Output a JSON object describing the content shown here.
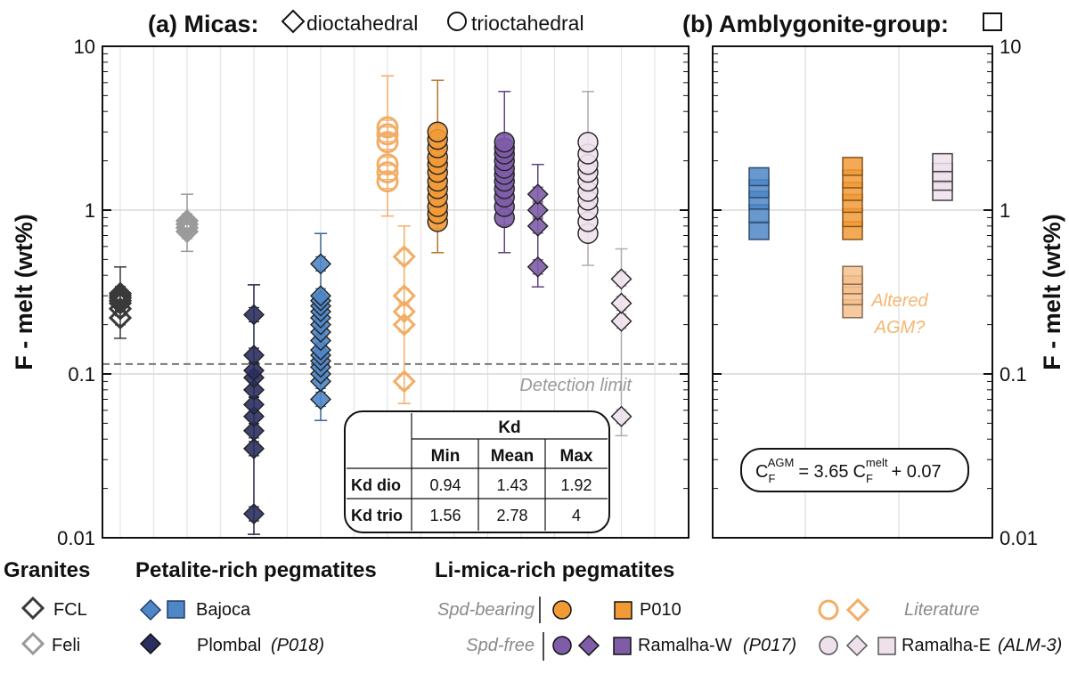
{
  "colors": {
    "fcl": "#3a3a3a",
    "feli": "#9a9a9a",
    "bajoca": "#4f86c6",
    "plombal": "#2a2f5e",
    "literature": "#f2ad66",
    "p010": "#f29a36",
    "ramalha_w": "#7e5ca8",
    "ramalha_e": "#eee1ec",
    "altered": "#f6c08d",
    "grid": "#e4e4e4",
    "axis": "#111111",
    "gray_text": "#9a9a9a"
  },
  "chart_data": [
    {
      "panel": "a",
      "type": "scatter",
      "title_prefix": "(a) Micas:",
      "title_dio": "dioctahedral",
      "title_trio": "trioctahedral",
      "ylabel": "F - melt (wt%)",
      "yscale": "log",
      "ylim": [
        0.01,
        10
      ],
      "yticks": [
        0.01,
        0.1,
        1,
        10
      ],
      "ytick_labels": [
        "0.01",
        "0.1",
        "1",
        "10"
      ],
      "detection_limit": 0.115,
      "detection_label": "Detection limit",
      "series": [
        {
          "name": "FCL",
          "group": "Granites",
          "marker": "diamond",
          "fill": "open",
          "color": "fcl",
          "x": 1,
          "values": [
            0.22,
            0.25,
            0.27,
            0.28,
            0.29,
            0.3,
            0.31
          ],
          "err_lo": 0.165,
          "err_hi": 0.45
        },
        {
          "name": "Feli",
          "group": "Granites",
          "marker": "diamond",
          "fill": "open",
          "color": "feli",
          "x": 3,
          "values": [
            0.74,
            0.78,
            0.82,
            0.86
          ],
          "err_lo": 0.56,
          "err_hi": 1.25
        },
        {
          "name": "Plombal (P018)",
          "group": "Petalite-rich pegmatites",
          "marker": "diamond",
          "fill": "filled",
          "color": "plombal",
          "x": 5,
          "values": [
            0.014,
            0.035,
            0.045,
            0.055,
            0.065,
            0.08,
            0.095,
            0.105,
            0.13,
            0.23
          ],
          "err_lo": 0.0105,
          "err_hi": 0.35
        },
        {
          "name": "Bajoca",
          "group": "Petalite-rich pegmatites",
          "marker": "diamond",
          "fill": "filled",
          "color": "bajoca",
          "x": 7,
          "values": [
            0.07,
            0.09,
            0.1,
            0.11,
            0.12,
            0.13,
            0.14,
            0.16,
            0.18,
            0.2,
            0.22,
            0.24,
            0.26,
            0.28,
            0.3,
            0.47
          ],
          "err_lo": 0.052,
          "err_hi": 0.72
        },
        {
          "name": "Literature (trio)",
          "group": "Literature",
          "marker": "circle",
          "fill": "open",
          "color": "literature",
          "x": 9,
          "values": [
            1.5,
            1.7,
            1.9,
            2.6,
            2.9,
            3.2
          ],
          "err_lo": 0.92,
          "err_hi": 6.6
        },
        {
          "name": "Literature (dio)",
          "group": "Literature",
          "marker": "diamond",
          "fill": "open",
          "color": "literature",
          "x": 9.5,
          "values": [
            0.09,
            0.2,
            0.24,
            0.3,
            0.52
          ],
          "err_lo": 0.066,
          "err_hi": 0.8
        },
        {
          "name": "P010",
          "group": "Li-mica-rich pegmatites, Spd-bearing",
          "marker": "circle",
          "fill": "filled",
          "color": "p010",
          "x": 10.5,
          "values": [
            0.85,
            0.95,
            1.05,
            1.2,
            1.35,
            1.5,
            1.7,
            1.9,
            2.1,
            2.4,
            2.7,
            3.0
          ],
          "err_lo": 0.55,
          "err_hi": 6.2
        },
        {
          "name": "Ramalha-W (P017) trio",
          "group": "Li-mica-rich pegmatites, Spd-free",
          "marker": "circle",
          "fill": "filled",
          "color": "ramalha_w",
          "x": 12.5,
          "values": [
            0.9,
            1.05,
            1.2,
            1.35,
            1.5,
            1.65,
            1.8,
            2.0,
            2.2,
            2.4,
            2.6
          ],
          "err_lo": 0.55,
          "err_hi": 5.3
        },
        {
          "name": "Ramalha-W (P017) dio",
          "group": "Li-mica-rich pegmatites, Spd-free",
          "marker": "diamond",
          "fill": "filled",
          "color": "ramalha_w",
          "x": 13.5,
          "values": [
            0.45,
            0.8,
            1.0,
            1.25
          ],
          "err_lo": 0.34,
          "err_hi": 1.9
        },
        {
          "name": "Ramalha-E (ALM-3) trio",
          "group": "Li-mica-rich pegmatites, Spd-free",
          "marker": "circle",
          "fill": "filled",
          "color": "ramalha_e",
          "x": 15,
          "values": [
            0.72,
            0.85,
            1.0,
            1.15,
            1.3,
            1.5,
            1.7,
            1.9,
            2.2,
            2.6
          ],
          "err_lo": 0.46,
          "err_hi": 5.3
        },
        {
          "name": "Ramalha-E (ALM-3) dio",
          "group": "Li-mica-rich pegmatites, Spd-free",
          "marker": "diamond",
          "fill": "filled",
          "color": "ramalha_e",
          "x": 16,
          "values": [
            0.055,
            0.21,
            0.27,
            0.38
          ],
          "err_lo": 0.042,
          "err_hi": 0.58
        }
      ],
      "kd_table": {
        "header": "Kd",
        "columns": [
          "Min",
          "Mean",
          "Max"
        ],
        "rows": [
          {
            "label": "Kd dio",
            "values": [
              "0.94",
              "1.43",
              "1.92"
            ]
          },
          {
            "label": "Kd trio",
            "values": [
              "1.56",
              "2.78",
              "4"
            ]
          }
        ]
      }
    },
    {
      "panel": "b",
      "type": "scatter",
      "title": "(b) Amblygonite-group:",
      "ylabel": "F - melt (wt%)",
      "yscale": "log",
      "ylim": [
        0.01,
        10
      ],
      "yticks": [
        0.01,
        0.1,
        1,
        10
      ],
      "ytick_labels": [
        "0.01",
        "0.1",
        "1",
        "10"
      ],
      "series": [
        {
          "name": "Bajoca",
          "marker": "square",
          "color": "bajoca",
          "x": 1,
          "values": [
            0.75,
            0.95,
            1.15,
            1.35,
            1.6
          ]
        },
        {
          "name": "P010",
          "marker": "square",
          "color": "p010",
          "x": 2,
          "values": [
            0.75,
            0.9,
            1.1,
            1.3,
            1.55,
            1.85
          ]
        },
        {
          "name": "Altered AGM?",
          "marker": "square",
          "color": "altered",
          "x": 2,
          "values": [
            0.25,
            0.3,
            0.35,
            0.4
          ]
        },
        {
          "name": "Ramalha-E (ALM-3)",
          "marker": "square",
          "color": "ramalha_e",
          "x": 3,
          "values": [
            1.3,
            1.5,
            1.7,
            1.95
          ]
        }
      ],
      "annotation": [
        "Altered",
        "AGM?"
      ],
      "equation": {
        "C": "C",
        "F": "F",
        "AGM": "AGM",
        "melt": "melt",
        "eq": "= 3.65",
        "plus": "+ 0.07"
      }
    }
  ],
  "legend": {
    "granites_title": "Granites",
    "fcl": "FCL",
    "feli": "Feli",
    "petalite_title": "Petalite-rich pegmatites",
    "bajoca": "Bajoca",
    "plombal": "Plombal",
    "plombal_note": "(P018)",
    "limica_title": "Li-mica-rich pegmatites",
    "spd_bearing": "Spd-bearing",
    "spd_free": "Spd-free",
    "p010": "P010",
    "ramalha_w": "Ramalha-W",
    "ramalha_w_note": "(P017)",
    "literature": "Literature",
    "ramalha_e": "Ramalha-E",
    "ramalha_e_note": "(ALM-3)"
  }
}
